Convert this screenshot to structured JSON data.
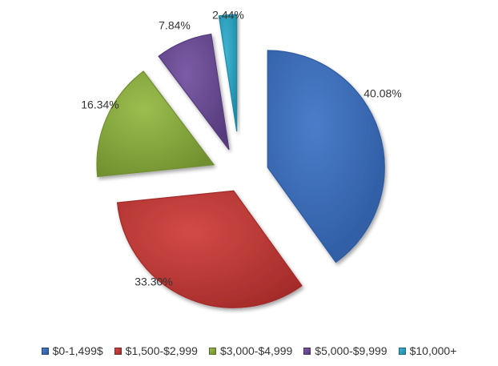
{
  "chart_data": {
    "type": "pie",
    "style": "exploded-3d",
    "title": "",
    "categories": [
      "$0-1,499$",
      "$1,500-$2,999",
      "$3,000-$4,999",
      "$5,000-$9,999",
      "$10,000+"
    ],
    "values": [
      40.08,
      33.3,
      16.34,
      7.84,
      2.44
    ],
    "data_labels": [
      "40.08%",
      "33.30%",
      "16.34%",
      "7.84%",
      "2.44%"
    ],
    "colors": [
      "#4a7dc9",
      "#d24a47",
      "#9cbd4f",
      "#7c5ca5",
      "#3fb4d1"
    ],
    "dark_colors": [
      "#2d5aa0",
      "#a32b29",
      "#6f8f2e",
      "#553a7c",
      "#1f8aa6"
    ],
    "legend_position": "bottom"
  }
}
